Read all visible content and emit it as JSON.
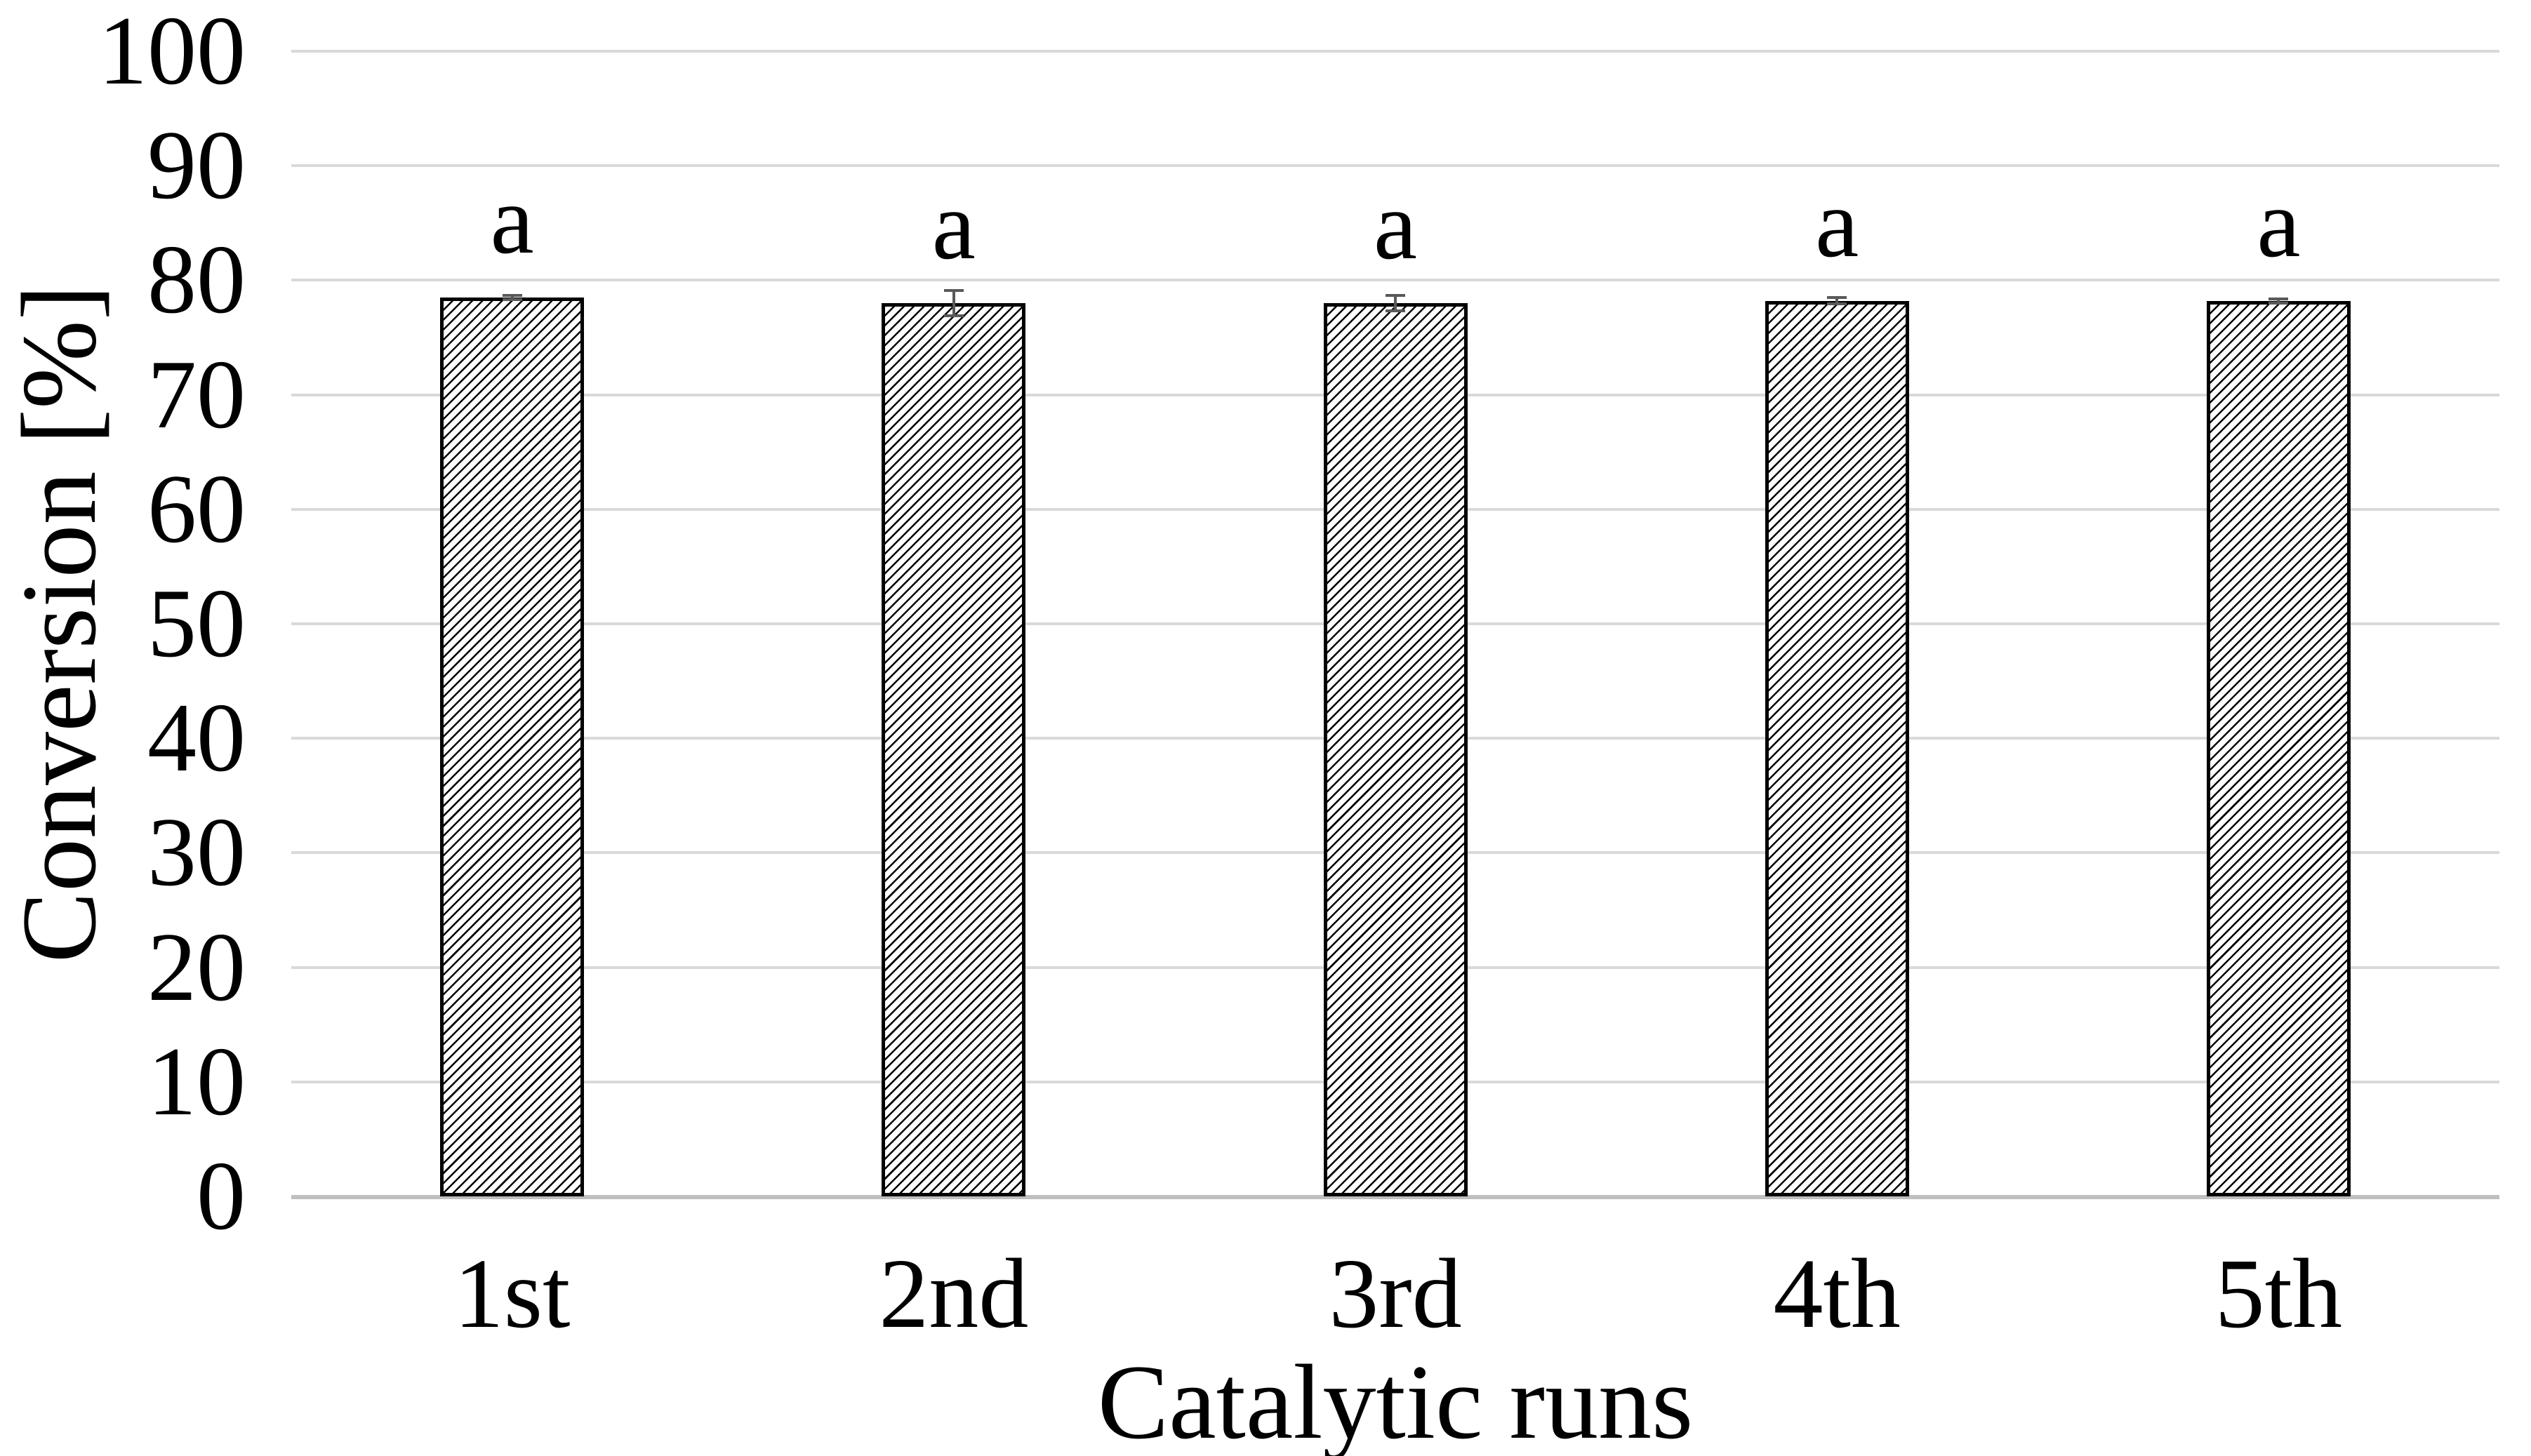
{
  "chart_data": {
    "type": "bar",
    "title": "",
    "xlabel": "Catalytic runs",
    "ylabel": "Conversion [%]",
    "categories": [
      "1st",
      "2nd",
      "3rd",
      "4th",
      "5th"
    ],
    "values": [
      78.5,
      78.0,
      78.0,
      78.2,
      78.2
    ],
    "error_bars": [
      0.3,
      1.2,
      0.8,
      0.4,
      0.3
    ],
    "bar_annotations": [
      "a",
      "a",
      "a",
      "a",
      "a"
    ],
    "ylim": [
      0,
      100
    ],
    "yticks": [
      0,
      10,
      20,
      30,
      40,
      50,
      60,
      70,
      80,
      90,
      100
    ],
    "grid": true,
    "legend": false,
    "bar_style": {
      "fill": "#ffffff",
      "hatch": "diagonal-forward",
      "hatch_color": "#000000",
      "border_color": "#000000"
    },
    "colors": {
      "background": "#ffffff",
      "gridline": "#d9d9d9",
      "axis_line": "#bfbfbf",
      "error_bar": "#595959",
      "text": "#000000"
    }
  }
}
